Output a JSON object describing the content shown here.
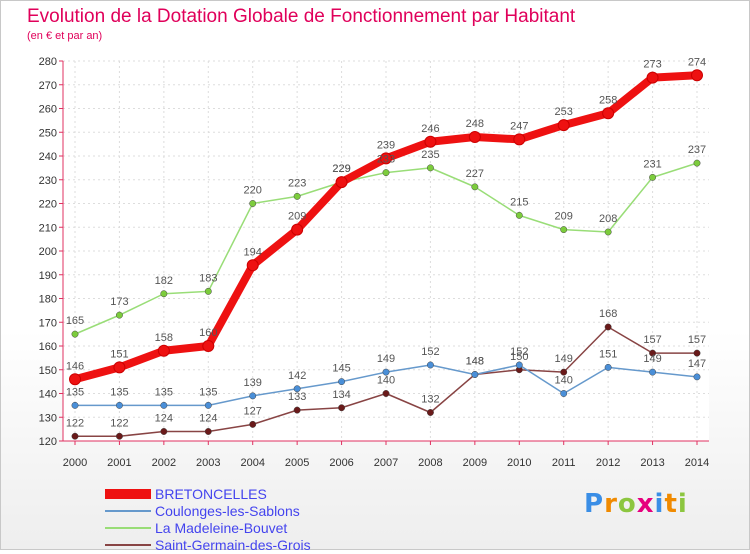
{
  "header": {
    "title": "Evolution de la Dotation Globale de Fonctionnement par Habitant",
    "subtitle": "(en € et par an)"
  },
  "brand": {
    "logo_text": "Proxiti",
    "colors": [
      "#3a8ee6",
      "#f08a00",
      "#8cc63f",
      "#e6007e",
      "#3a8ee6",
      "#f08a00",
      "#8cc63f"
    ]
  },
  "chart_data": {
    "type": "line",
    "x": [
      2000,
      2001,
      2002,
      2003,
      2004,
      2005,
      2006,
      2007,
      2008,
      2009,
      2010,
      2011,
      2012,
      2013,
      2014
    ],
    "ylim": [
      120,
      280
    ],
    "ystep": 10,
    "grid": true,
    "legend_position": "bottom-left",
    "series": [
      {
        "name": "BRETONCELLES",
        "color": "#ee1111",
        "marker_color": "#ee1111",
        "values": [
          146,
          151,
          158,
          160,
          194,
          209,
          229,
          239,
          246,
          248,
          247,
          253,
          258,
          273,
          274
        ]
      },
      {
        "name": "Coulonges-les-Sablons",
        "color": "#6699cc",
        "marker_color": "#4a8fd8",
        "values": [
          135,
          135,
          135,
          135,
          139,
          142,
          145,
          149,
          152,
          148,
          152,
          140,
          151,
          149,
          147
        ]
      },
      {
        "name": "La Madeleine-Bouvet",
        "color": "#99dd77",
        "marker_color": "#7ccc3c",
        "values": [
          165,
          173,
          182,
          183,
          220,
          223,
          229,
          233,
          235,
          227,
          215,
          209,
          208,
          231,
          237
        ]
      },
      {
        "name": "Saint-Germain-des-Grois",
        "color": "#884444",
        "marker_color": "#6a1a1a",
        "values": [
          122,
          122,
          124,
          124,
          127,
          133,
          134,
          140,
          132,
          148,
          150,
          149,
          168,
          157,
          157
        ]
      }
    ]
  }
}
